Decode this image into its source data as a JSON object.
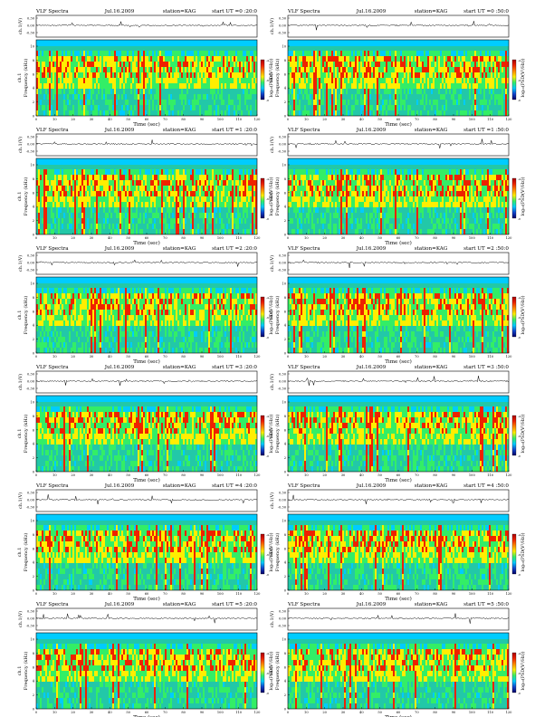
{
  "panel_labels": {
    "product": "VLF Spectra",
    "date": "Jul.16.2009",
    "station": "station=KAG",
    "start_prefix": "start  UT =",
    "timeseries_ylabel": "ch.1(V)",
    "freq_ylabel_line1": "ch.1",
    "freq_ylabel_line2": "Frequency  (kHz)",
    "xlabel": "Time  (sec)",
    "colorbar_label": "log₁₀(PSD(V²/Hz))"
  },
  "axes": {
    "timeseries_ticks": [
      "0.30",
      "0.00",
      "-0.30"
    ],
    "freq_ticks": [
      "10",
      "8",
      "6",
      "4",
      "2",
      "0"
    ],
    "time_ticks": [
      "0",
      "10",
      "20",
      "30",
      "40",
      "50",
      "60",
      "70",
      "80",
      "90",
      "100",
      "110",
      "120"
    ],
    "colorbar_ticks": [
      "-4",
      "-6",
      "-8"
    ]
  },
  "colors": {
    "background": "#00ccff",
    "low": "#22c8a8",
    "mid": "#33ee66",
    "high": "#ffee00",
    "peak": "#ee2200",
    "colorbar": [
      "#aa0000",
      "#ee2200",
      "#ff8800",
      "#ffee00",
      "#33ee66",
      "#00ccff",
      "#1144cc",
      "#000066"
    ]
  },
  "chart_data": [
    {
      "type": "heatmap",
      "start_ut": "0 :20:0",
      "time_range": [
        0,
        120
      ],
      "freq_range_khz": [
        0,
        10
      ],
      "seed": 11
    },
    {
      "type": "heatmap",
      "start_ut": "0 :50:0",
      "time_range": [
        0,
        120
      ],
      "freq_range_khz": [
        0,
        10
      ],
      "seed": 23
    },
    {
      "type": "heatmap",
      "start_ut": "1 :20:0",
      "time_range": [
        0,
        120
      ],
      "freq_range_khz": [
        0,
        10
      ],
      "seed": 37
    },
    {
      "type": "heatmap",
      "start_ut": "1 :50:0",
      "time_range": [
        0,
        120
      ],
      "freq_range_khz": [
        0,
        10
      ],
      "seed": 41
    },
    {
      "type": "heatmap",
      "start_ut": "2 :20:0",
      "time_range": [
        0,
        120
      ],
      "freq_range_khz": [
        0,
        10
      ],
      "seed": 53
    },
    {
      "type": "heatmap",
      "start_ut": "2 :50:0",
      "time_range": [
        0,
        120
      ],
      "freq_range_khz": [
        0,
        10
      ],
      "seed": 67
    },
    {
      "type": "heatmap",
      "start_ut": "3 :20:0",
      "time_range": [
        0,
        120
      ],
      "freq_range_khz": [
        0,
        10
      ],
      "seed": 71
    },
    {
      "type": "heatmap",
      "start_ut": "3 :50:0",
      "time_range": [
        0,
        120
      ],
      "freq_range_khz": [
        0,
        10
      ],
      "seed": 83
    },
    {
      "type": "heatmap",
      "start_ut": "4 :20:0",
      "time_range": [
        0,
        120
      ],
      "freq_range_khz": [
        0,
        10
      ],
      "seed": 97
    },
    {
      "type": "heatmap",
      "start_ut": "4 :50:0",
      "time_range": [
        0,
        120
      ],
      "freq_range_khz": [
        0,
        10
      ],
      "seed": 101
    },
    {
      "type": "heatmap",
      "start_ut": "5 :20:0",
      "time_range": [
        0,
        120
      ],
      "freq_range_khz": [
        0,
        10
      ],
      "seed": 113
    },
    {
      "type": "heatmap",
      "start_ut": "5 :50:0",
      "time_range": [
        0,
        120
      ],
      "freq_range_khz": [
        0,
        10
      ],
      "seed": 127
    }
  ]
}
